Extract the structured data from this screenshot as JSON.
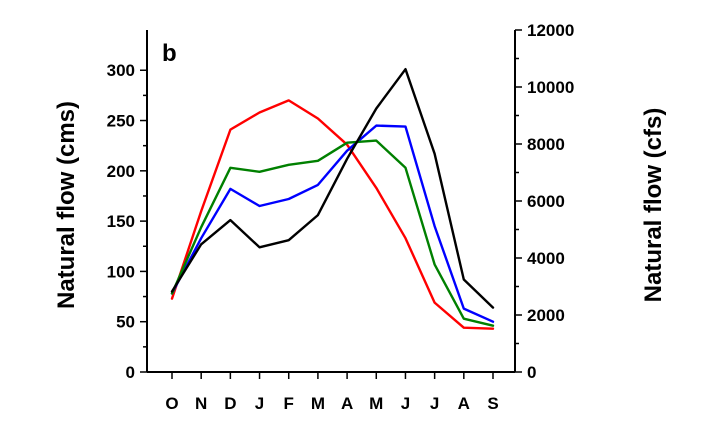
{
  "chart_data": {
    "type": "line",
    "panel_label": "b",
    "categories": [
      "O",
      "N",
      "D",
      "J",
      "F",
      "M",
      "A",
      "M",
      "J",
      "J",
      "A",
      "S"
    ],
    "ylabel": "Natural flow (cms)",
    "ylabel_right": "Natural flow (cfs)",
    "ylim": [
      0,
      340
    ],
    "ylim_right": [
      0,
      12000
    ],
    "yticks": [
      0,
      50,
      100,
      150,
      200,
      250,
      300
    ],
    "yticks_right": [
      0,
      2000,
      4000,
      6000,
      8000,
      10000,
      12000
    ],
    "grid": false,
    "legend": "none",
    "series": [
      {
        "color": "#ff0000",
        "values": [
          73,
          160,
          241,
          258,
          270,
          252,
          226,
          183,
          133,
          69,
          44,
          43
        ]
      },
      {
        "color": "#0000ff",
        "values": [
          78,
          133,
          182,
          165,
          172,
          186,
          220,
          245,
          244,
          145,
          63,
          50
        ]
      },
      {
        "color": "#008000",
        "values": [
          78,
          144,
          203,
          199,
          206,
          210,
          228,
          230,
          203,
          107,
          53,
          46
        ]
      },
      {
        "color": "#000000",
        "values": [
          80,
          127,
          151,
          124,
          131,
          156,
          212,
          262,
          301,
          217,
          92,
          64
        ]
      }
    ]
  }
}
